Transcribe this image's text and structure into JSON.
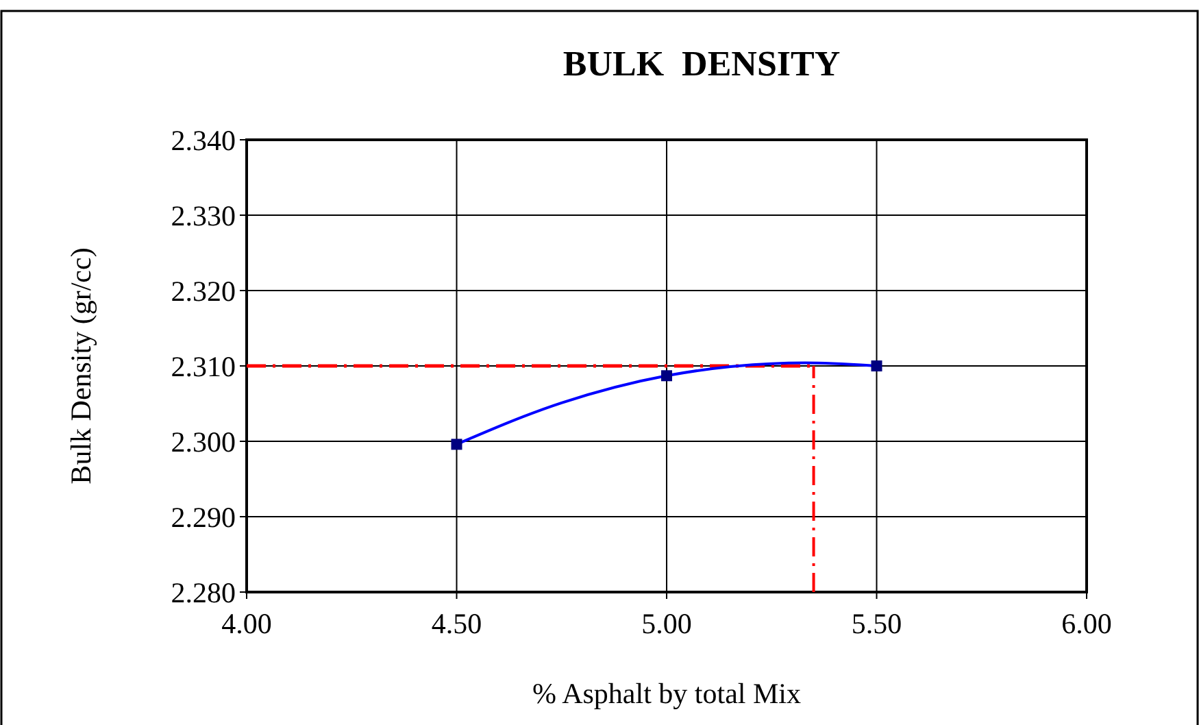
{
  "chart_data": {
    "type": "scatter",
    "title": "BULK  DENSITY",
    "xlabel": "% Asphalt by total Mix",
    "ylabel": "Bulk Density (gr/cc)",
    "xlim": [
      4,
      6
    ],
    "xticks": [
      {
        "value": 4,
        "label": "4.00"
      },
      {
        "value": 4.5,
        "label": "4.50"
      },
      {
        "value": 5,
        "label": "5.00"
      },
      {
        "value": 5.5,
        "label": "5.50"
      },
      {
        "value": 6,
        "label": "6.00"
      }
    ],
    "ylim": [
      2.28,
      2.34
    ],
    "yticks": [
      {
        "value": 2.28,
        "label": "2.280"
      },
      {
        "value": 2.29,
        "label": "2.290"
      },
      {
        "value": 2.3,
        "label": "2.300"
      },
      {
        "value": 2.31,
        "label": "2.310"
      },
      {
        "value": 2.32,
        "label": "2.320"
      },
      {
        "value": 2.33,
        "label": "2.330"
      },
      {
        "value": 2.34,
        "label": "2.340"
      }
    ],
    "grid": true,
    "series": [
      {
        "type": "line",
        "color": "#0000ff",
        "marker": "none",
        "x": [
          4.5,
          4.75,
          5,
          5.25,
          5.33,
          5.5
        ],
        "values": [
          2.2996,
          2.3051,
          2.3087,
          2.3103,
          2.3104,
          2.31
        ]
      },
      {
        "color": "#000080",
        "marker": "square",
        "x": [
          4.5,
          5,
          5.5
        ],
        "values": [
          2.2996,
          2.3087,
          2.31
        ]
      }
    ],
    "ref_lines": [
      {
        "axis": "y",
        "value": 2.31,
        "color": "#ff0000",
        "line_style": "dashdot"
      },
      {
        "axis": "x",
        "value": 5.35,
        "color": "#ff0000",
        "line_style": "dashdot"
      }
    ]
  }
}
